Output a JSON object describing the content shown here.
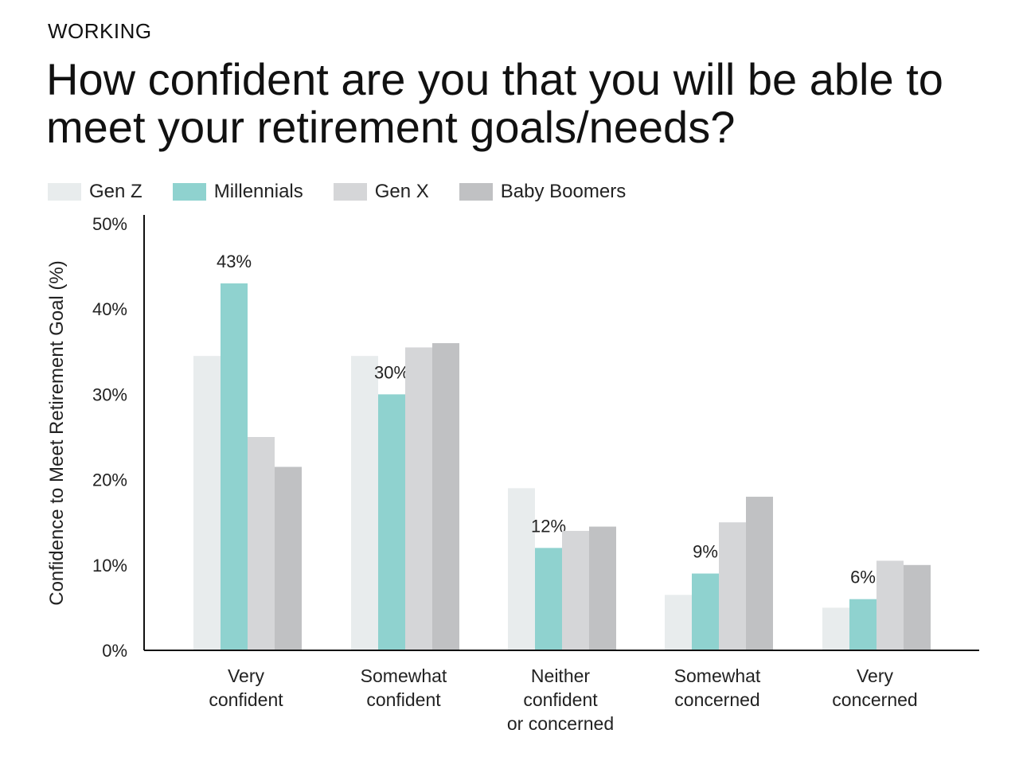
{
  "header": {
    "eyebrow": "WORKING",
    "title": "How confident are you that you will be able to meet your retirement goals/needs?"
  },
  "chart_data": {
    "type": "bar",
    "title": "How confident are you that you will be able to meet your retirement goals/needs?",
    "xlabel": "",
    "ylabel": "Confidence to Meet Retirement Goal (%)",
    "ylim": [
      0,
      50
    ],
    "yticks": [
      "0%",
      "10%",
      "20%",
      "30%",
      "40%",
      "50%"
    ],
    "ytick_values": [
      0,
      10,
      20,
      30,
      40,
      50
    ],
    "grid": false,
    "legend_position": "top-left",
    "categories": [
      [
        "Very",
        "confident"
      ],
      [
        "Somewhat",
        "confident"
      ],
      [
        "Neither",
        "confident",
        "or concerned"
      ],
      [
        "Somewhat",
        "concerned"
      ],
      [
        "Very",
        "concerned"
      ]
    ],
    "series": [
      {
        "name": "Gen Z",
        "color": "#e8eced",
        "values": [
          34.5,
          34.5,
          19,
          6.5,
          5
        ]
      },
      {
        "name": "Millennials",
        "color": "#8fd2cf",
        "values": [
          43,
          30,
          12,
          9,
          6
        ],
        "labels": [
          "43%",
          "30%",
          "12%",
          "9%",
          "6%"
        ]
      },
      {
        "name": "Gen X",
        "color": "#d5d6d8",
        "values": [
          25,
          35.5,
          14,
          15,
          10.5
        ]
      },
      {
        "name": "Baby Boomers",
        "color": "#c0c1c3",
        "values": [
          21.5,
          36,
          14.5,
          18,
          10
        ]
      }
    ]
  }
}
